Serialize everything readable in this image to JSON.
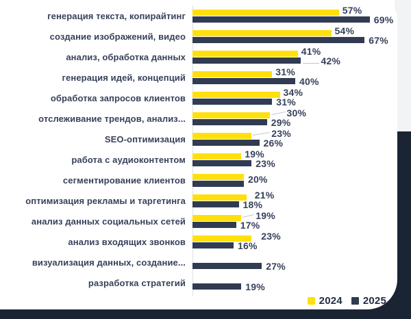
{
  "chart_data": {
    "type": "bar",
    "orientation": "horizontal",
    "value_unit": "%",
    "grid": false,
    "xlim": [
      0,
      75
    ],
    "categories": [
      "генерация текста, копирайтинг",
      "создание изображений, видео",
      "анализ, обработка данных",
      "генерация идей, концепций",
      "обработка запросов клиентов",
      "отслеживание трендов, анализ...",
      "SEO-оптимизация",
      "работа с аудиоконтентом",
      "сегментирование клиентов",
      "оптимизация рекламы и таргетинга",
      "анализ данных социальных сетей",
      "анализ входящих звонков",
      "визуализация данных, создание...",
      "разработка стратегий"
    ],
    "series": [
      {
        "name": "2024",
        "color": "#ffe00d",
        "values": [
          57,
          54,
          41,
          31,
          34,
          30,
          23,
          19,
          20,
          21,
          19,
          23,
          null,
          null
        ]
      },
      {
        "name": "2025",
        "color": "#313b52",
        "values": [
          69,
          67,
          42,
          40,
          31,
          29,
          26,
          23,
          20,
          18,
          17,
          16,
          27,
          19
        ]
      }
    ],
    "value_labels": {
      "s2024": [
        "57%",
        "54%",
        "41%",
        "31%",
        "34%",
        "30%",
        "23%",
        "19%",
        "",
        "21%",
        "19%",
        "23%",
        "",
        ""
      ],
      "s2025": [
        "69%",
        "67%",
        "42%",
        "40%",
        "31%",
        "29%",
        "26%",
        "23%",
        "20%",
        "18%",
        "17%",
        "16%",
        "27%",
        "19%"
      ]
    },
    "annotations": {
      "label_dx_2024": [
        0,
        0,
        0,
        0,
        0,
        20,
        24,
        0,
        0,
        7,
        16,
        9,
        0,
        0
      ],
      "label_dx_2025": [
        0,
        0,
        24,
        0,
        0,
        0,
        0,
        0,
        0,
        0,
        0,
        0,
        0,
        0
      ],
      "leader_2024": [
        false,
        false,
        false,
        false,
        false,
        true,
        true,
        false,
        false,
        false,
        true,
        false,
        false,
        false
      ],
      "leader_2025": [
        false,
        false,
        true,
        false,
        false,
        false,
        false,
        false,
        false,
        false,
        false,
        false,
        false,
        false
      ],
      "single_centered_label": [
        false,
        false,
        false,
        false,
        false,
        false,
        false,
        false,
        true,
        false,
        false,
        false,
        false,
        false
      ]
    },
    "legend": {
      "position": "bottom-right",
      "entries": [
        {
          "label": "2024",
          "color": "#ffe00d"
        },
        {
          "label": "2025",
          "color": "#313b52"
        }
      ]
    }
  },
  "colors": {
    "card_background": "#ffffff",
    "slide_background": "#1b2433",
    "corner_background": "#f2f3f5",
    "text": "#36415a",
    "axis_line": "#dce0e5",
    "leader_line": "#bcc6d0"
  }
}
